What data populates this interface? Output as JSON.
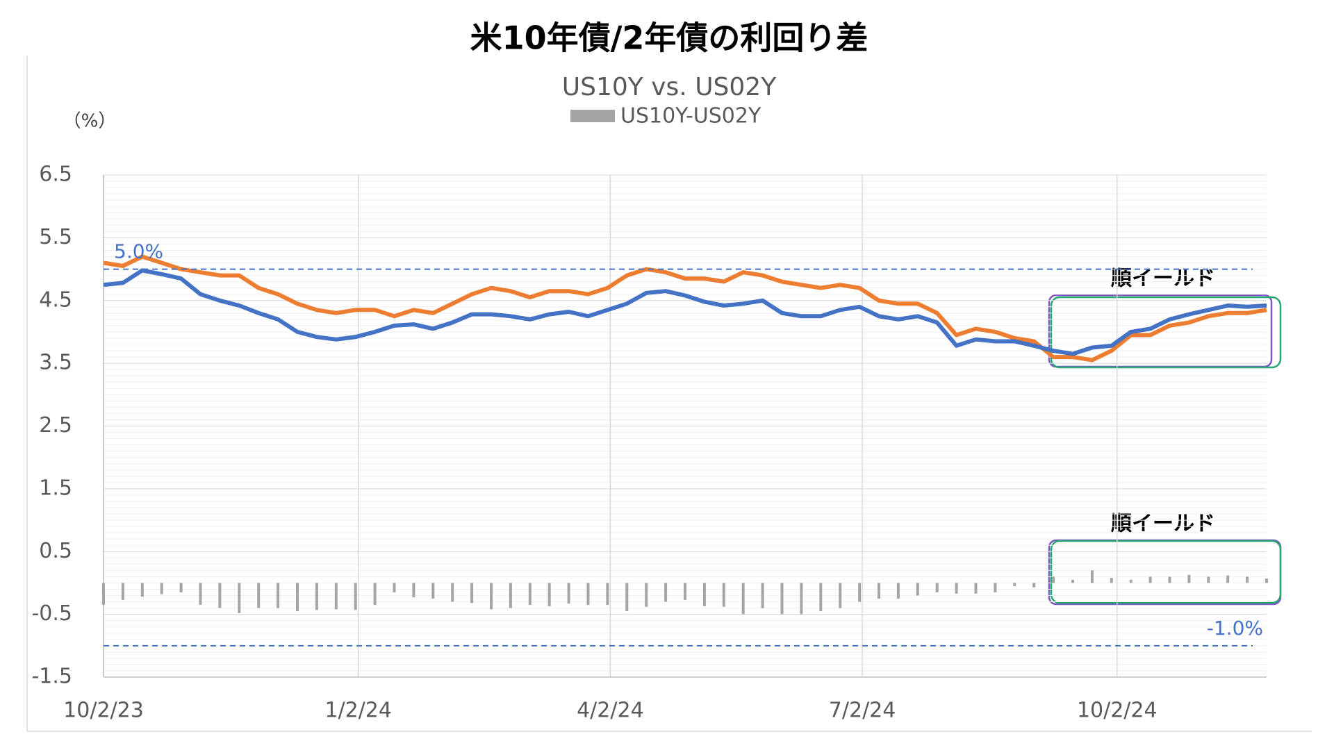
{
  "chart_data": {
    "type": "line",
    "title": "米10年債/2年債の利回り差",
    "subtitle": "US10Y vs. US02Y",
    "y_label": "（%）",
    "x": [
      "10/2/23",
      "10/9/23",
      "10/16/23",
      "10/23/23",
      "10/30/23",
      "11/6/23",
      "11/13/23",
      "11/20/23",
      "11/27/23",
      "12/4/23",
      "12/11/23",
      "12/18/23",
      "12/25/23",
      "1/1/24",
      "1/8/24",
      "1/15/24",
      "1/22/24",
      "1/29/24",
      "2/5/24",
      "2/12/24",
      "2/19/24",
      "2/26/24",
      "3/4/24",
      "3/11/24",
      "3/18/24",
      "3/25/24",
      "4/1/24",
      "4/8/24",
      "4/15/24",
      "4/22/24",
      "4/29/24",
      "5/6/24",
      "5/13/24",
      "5/20/24",
      "5/27/24",
      "6/3/24",
      "6/10/24",
      "6/17/24",
      "6/24/24",
      "7/1/24",
      "7/8/24",
      "7/15/24",
      "7/22/24",
      "7/29/24",
      "8/5/24",
      "8/12/24",
      "8/19/24",
      "8/26/24",
      "9/2/24",
      "9/9/24",
      "9/16/24",
      "9/23/24",
      "9/30/24",
      "10/7/24",
      "10/14/24",
      "10/21/24",
      "10/28/24",
      "11/4/24",
      "11/11/24",
      "11/18/24",
      "11/25/24"
    ],
    "series": [
      {
        "type": "bar",
        "name": "US10Y-US02Y",
        "color": "#a5a5a5",
        "values": [
          -0.35,
          -0.27,
          -0.22,
          -0.18,
          -0.15,
          -0.35,
          -0.4,
          -0.48,
          -0.4,
          -0.4,
          -0.45,
          -0.43,
          -0.42,
          -0.43,
          -0.35,
          -0.15,
          -0.23,
          -0.25,
          -0.3,
          -0.32,
          -0.42,
          -0.4,
          -0.35,
          -0.37,
          -0.33,
          -0.35,
          -0.35,
          -0.45,
          -0.38,
          -0.3,
          -0.27,
          -0.37,
          -0.38,
          -0.5,
          -0.4,
          -0.5,
          -0.5,
          -0.45,
          -0.4,
          -0.3,
          -0.25,
          -0.25,
          -0.2,
          -0.15,
          -0.17,
          -0.17,
          -0.15,
          -0.05,
          -0.07,
          0.1,
          0.05,
          0.2,
          0.08,
          0.05,
          0.1,
          0.1,
          0.13,
          0.1,
          0.12,
          0.1,
          0.07
        ]
      },
      {
        "type": "line",
        "color": "#ed7d31",
        "values": [
          5.1,
          5.05,
          5.2,
          5.1,
          5.0,
          4.95,
          4.9,
          4.9,
          4.7,
          4.6,
          4.45,
          4.35,
          4.3,
          4.35,
          4.35,
          4.25,
          4.35,
          4.3,
          4.45,
          4.6,
          4.7,
          4.65,
          4.55,
          4.65,
          4.65,
          4.6,
          4.7,
          4.9,
          5.0,
          4.95,
          4.85,
          4.85,
          4.8,
          4.95,
          4.9,
          4.8,
          4.75,
          4.7,
          4.75,
          4.7,
          4.5,
          4.45,
          4.45,
          4.3,
          3.95,
          4.05,
          4.0,
          3.9,
          3.85,
          3.6,
          3.6,
          3.55,
          3.7,
          3.95,
          3.95,
          4.1,
          4.15,
          4.25,
          4.3,
          4.3,
          4.35
        ]
      },
      {
        "type": "line",
        "color": "#4472c4",
        "values": [
          4.75,
          4.78,
          4.98,
          4.92,
          4.85,
          4.6,
          4.5,
          4.42,
          4.3,
          4.2,
          4.0,
          3.92,
          3.88,
          3.92,
          4.0,
          4.1,
          4.12,
          4.05,
          4.15,
          4.28,
          4.28,
          4.25,
          4.2,
          4.28,
          4.32,
          4.25,
          4.35,
          4.45,
          4.62,
          4.65,
          4.58,
          4.48,
          4.42,
          4.45,
          4.5,
          4.3,
          4.25,
          4.25,
          4.35,
          4.4,
          4.25,
          4.2,
          4.25,
          4.15,
          3.78,
          3.88,
          3.85,
          3.85,
          3.78,
          3.7,
          3.65,
          3.75,
          3.78,
          4.0,
          4.05,
          4.2,
          4.28,
          4.35,
          4.42,
          4.4,
          4.42
        ]
      }
    ],
    "xlim": [
      "10/2/23",
      "11/25/24"
    ],
    "xticks": [
      "10/2/23",
      "1/2/24",
      "4/2/24",
      "7/2/24",
      "10/2/24"
    ],
    "ylim": [
      -1.5,
      6.5
    ],
    "yticks": [
      -1.5,
      -0.5,
      0.5,
      1.5,
      2.5,
      3.5,
      4.5,
      5.5,
      6.5
    ],
    "grid": true,
    "reference_lines": [
      {
        "value": 5.0,
        "label": "5.0%",
        "color": "#4472c4"
      },
      {
        "value": -1.0,
        "label": "-1.0%",
        "color": "#4472c4"
      }
    ],
    "annotations": [
      "順イールド",
      "順イールド"
    ]
  }
}
